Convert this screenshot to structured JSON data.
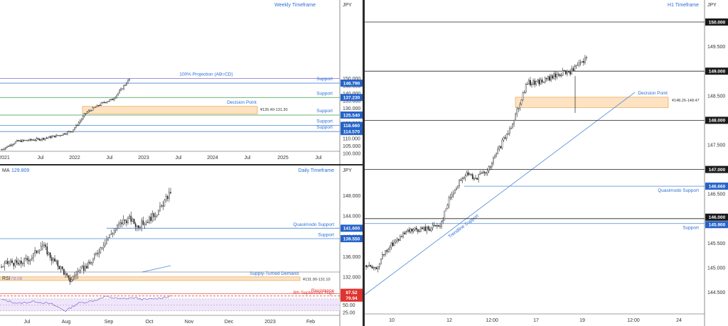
{
  "chart_data": [
    {
      "type": "candlestick",
      "title": "Weekly Timeframe",
      "currency": "JPY",
      "x_ticks": [
        "2021",
        "Jul",
        "2022",
        "Jul",
        "2023",
        "Jul",
        "2024",
        "Jul",
        "2025",
        "Jul"
      ],
      "y_ticks": [
        100,
        105,
        110,
        115,
        120,
        125,
        130,
        135,
        140,
        145,
        150
      ],
      "ylim": [
        97,
        152
      ],
      "levels": [
        {
          "label": "100% Projection (AB=CD)",
          "value": 149.9,
          "color": "#9a7fd1"
        },
        {
          "label": "Support",
          "value": 146.79,
          "tag": "146.790",
          "color": "#4a88d8"
        },
        {
          "label": "Support",
          "value": 137.23,
          "tag": "137.230",
          "color": "#3a9a4a"
        },
        {
          "label": "Support",
          "value": 125.54,
          "tag": "125.540",
          "color": "#3a9a4a"
        },
        {
          "label": "Support",
          "value": 118.66,
          "tag": "118.660",
          "color": "#4a88d8"
        },
        {
          "label": "Support",
          "value": 114.57,
          "tag": "114.570",
          "color": "#4a88d8"
        }
      ],
      "zone": {
        "label": "Decision Point",
        "range_text": "¥126.40-131.30",
        "low": 126.4,
        "high": 131.3
      }
    },
    {
      "type": "candlestick",
      "title": "Daily Timeframe",
      "currency": "JPY",
      "indicator": "MA",
      "indicator_value": "129.809",
      "x_ticks": [
        "Jul",
        "Aug",
        "Sep",
        "Oct",
        "Nov",
        "Dec",
        "2023",
        "Feb"
      ],
      "y_ticks": [
        132,
        136,
        140,
        144,
        148
      ],
      "ylim": [
        129.8,
        150
      ],
      "levels": [
        {
          "label": "Quasimodo Support",
          "value": 141.6,
          "tag": "141.600",
          "color": "#4a88d8"
        },
        {
          "label": "Support",
          "value": 139.55,
          "tag": "139.550",
          "color": "#4a88d8"
        }
      ],
      "zone": {
        "label": "Supply-Turned Demand",
        "range_text": "¥131.90-131.10",
        "low": 131.1,
        "high": 131.9
      }
    },
    {
      "type": "line",
      "title": "RSI",
      "indicator_value": "78.08",
      "y_ticks": [
        25,
        50
      ],
      "ylim": [
        15,
        100
      ],
      "levels": [
        {
          "label": "Resistance",
          "value": 87.52,
          "tag": "87.52",
          "color": "#e0332f"
        },
        {
          "label": "8th September High",
          "value": 79.94,
          "tag": "79.94",
          "color": "#e0332f"
        }
      ]
    },
    {
      "type": "candlestick",
      "title": "H1 Timeframe",
      "currency": "JPY",
      "x_ticks": [
        "10",
        "12",
        "12:00",
        "17",
        "19",
        "12:00",
        "24"
      ],
      "y_ticks": [
        144.5,
        145.0,
        145.5,
        146.0,
        146.5,
        147.0,
        147.5,
        148.0,
        148.5,
        149.0,
        149.5,
        150.0
      ],
      "ylim": [
        144.15,
        150.22
      ],
      "levels": [
        {
          "label": "",
          "value": 150.0,
          "tag": "150.000",
          "color": "#222"
        },
        {
          "label": "",
          "value": 149.0,
          "tag": "149.000",
          "color": "#222"
        },
        {
          "label": "",
          "value": 148.0,
          "tag": "148.000",
          "color": "#222"
        },
        {
          "label": "",
          "value": 147.0,
          "tag": "147.000",
          "color": "#222"
        },
        {
          "label": "Quasimodo Support",
          "value": 146.66,
          "tag": "146.660",
          "color": "#4a88d8"
        },
        {
          "label": "",
          "value": 146.0,
          "tag": "146.000",
          "color": "#222"
        },
        {
          "label": "Support",
          "value": 145.9,
          "tag": "145.900",
          "color": "#4a88d8"
        }
      ],
      "zone": {
        "label": "Decision Point",
        "range_text": "¥148.26-148.47",
        "low": 148.26,
        "high": 148.47
      },
      "trendline": {
        "label": "Trendline Support"
      }
    }
  ]
}
